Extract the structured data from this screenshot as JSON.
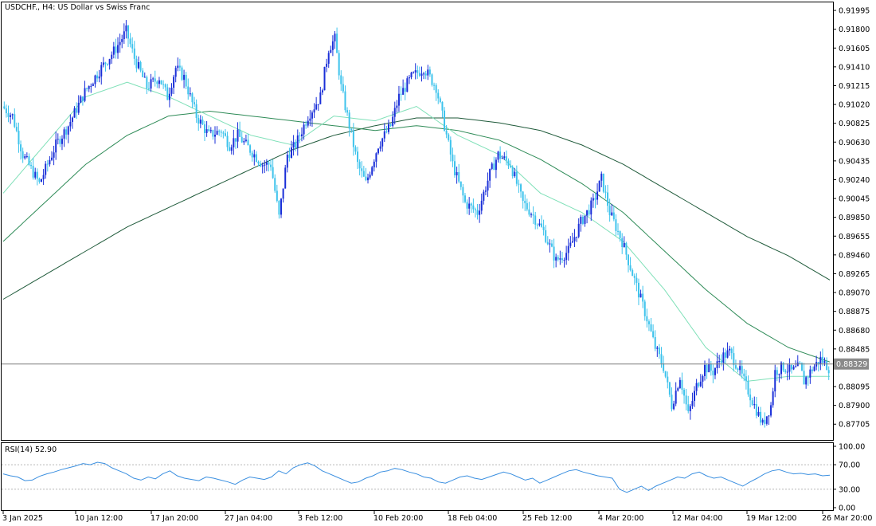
{
  "header": {
    "title": "USDCHF., H4:  US Dollar vs Swiss Franc"
  },
  "rsi_label": "RSI(14) 52.90",
  "colors": {
    "bull": "#1a2fd8",
    "bear": "#3ec3ec",
    "ma_fast": "#7fe0b8",
    "ma_mid": "#2e8b57",
    "ma_slow": "#1f5a3a",
    "rsi": "#3a8fe0",
    "grid_frame": "#000000",
    "price_line": "#7d7d7d"
  },
  "chart_data": [
    {
      "type": "candlestick",
      "title": "USDCHF., H4:  US Dollar vs Swiss Franc",
      "ylim": [
        0.8755,
        0.9207
      ],
      "y_ticks": [
        "0.91995",
        "0.91800",
        "0.91605",
        "0.91410",
        "0.91215",
        "0.91020",
        "0.90825",
        "0.90630",
        "0.90435",
        "0.90240",
        "0.90045",
        "0.89850",
        "0.89655",
        "0.89460",
        "0.89265",
        "0.89070",
        "0.88875",
        "0.88680",
        "0.88485",
        "0.88095",
        "0.87900",
        "0.87705"
      ],
      "x_ticks": [
        "3 Jan 2025",
        "10 Jan 12:00",
        "17 Jan 20:00",
        "27 Jan 04:00",
        "3 Feb 12:00",
        "10 Feb 20:00",
        "18 Feb 04:00",
        "25 Feb 12:00",
        "4 Mar 20:00",
        "12 Mar 04:00",
        "19 Mar 12:00",
        "26 Mar 20:00"
      ],
      "current_price": "0.88329",
      "close_path": [
        [
          0,
          0.91
        ],
        [
          5,
          0.909
        ],
        [
          10,
          0.905
        ],
        [
          18,
          0.902
        ],
        [
          26,
          0.906
        ],
        [
          32,
          0.908
        ],
        [
          40,
          0.9115
        ],
        [
          48,
          0.914
        ],
        [
          55,
          0.916
        ],
        [
          60,
          0.9178
        ],
        [
          64,
          0.915
        ],
        [
          70,
          0.912
        ],
        [
          76,
          0.913
        ],
        [
          80,
          0.911
        ],
        [
          84,
          0.914
        ],
        [
          88,
          0.913
        ],
        [
          94,
          0.909
        ],
        [
          100,
          0.907
        ],
        [
          106,
          0.9075
        ],
        [
          110,
          0.906
        ],
        [
          114,
          0.907
        ],
        [
          118,
          0.906
        ],
        [
          122,
          0.905
        ],
        [
          126,
          0.904
        ],
        [
          130,
          0.904
        ],
        [
          134,
          0.8985
        ],
        [
          138,
          0.905
        ],
        [
          142,
          0.906
        ],
        [
          148,
          0.909
        ],
        [
          154,
          0.911
        ],
        [
          158,
          0.916
        ],
        [
          161,
          0.917
        ],
        [
          164,
          0.912
        ],
        [
          168,
          0.908
        ],
        [
          172,
          0.904
        ],
        [
          176,
          0.902
        ],
        [
          182,
          0.906
        ],
        [
          188,
          0.908
        ],
        [
          192,
          0.911
        ],
        [
          198,
          0.913
        ],
        [
          204,
          0.914
        ],
        [
          210,
          0.912
        ],
        [
          214,
          0.908
        ],
        [
          218,
          0.904
        ],
        [
          224,
          0.9
        ],
        [
          230,
          0.899
        ],
        [
          236,
          0.903
        ],
        [
          240,
          0.905
        ],
        [
          246,
          0.904
        ],
        [
          252,
          0.9
        ],
        [
          256,
          0.899
        ],
        [
          262,
          0.897
        ],
        [
          268,
          0.894
        ],
        [
          274,
          0.895
        ],
        [
          280,
          0.898
        ],
        [
          286,
          0.9
        ],
        [
          290,
          0.9025
        ],
        [
          294,
          0.899
        ],
        [
          300,
          0.896
        ],
        [
          306,
          0.892
        ],
        [
          312,
          0.888
        ],
        [
          316,
          0.885
        ],
        [
          320,
          0.883
        ],
        [
          324,
          0.879
        ],
        [
          328,
          0.882
        ],
        [
          332,
          0.878
        ],
        [
          336,
          0.881
        ],
        [
          340,
          0.883
        ],
        [
          344,
          0.8825
        ],
        [
          348,
          0.884
        ],
        [
          352,
          0.8845
        ],
        [
          356,
          0.883
        ],
        [
          360,
          0.881
        ],
        [
          364,
          0.879
        ],
        [
          368,
          0.877
        ],
        [
          372,
          0.879
        ],
        [
          374,
          0.8825
        ],
        [
          378,
          0.883
        ],
        [
          382,
          0.8825
        ],
        [
          386,
          0.883
        ],
        [
          388,
          0.8815
        ],
        [
          392,
          0.8828
        ],
        [
          396,
          0.8838
        ],
        [
          400,
          0.8829
        ]
      ],
      "ma_fast": [
        [
          0,
          0.901
        ],
        [
          20,
          0.906
        ],
        [
          40,
          0.911
        ],
        [
          60,
          0.9125
        ],
        [
          80,
          0.911
        ],
        [
          100,
          0.909
        ],
        [
          120,
          0.907
        ],
        [
          140,
          0.906
        ],
        [
          160,
          0.909
        ],
        [
          180,
          0.9085
        ],
        [
          200,
          0.91
        ],
        [
          220,
          0.907
        ],
        [
          240,
          0.905
        ],
        [
          260,
          0.901
        ],
        [
          280,
          0.899
        ],
        [
          300,
          0.896
        ],
        [
          320,
          0.891
        ],
        [
          340,
          0.885
        ],
        [
          360,
          0.8815
        ],
        [
          380,
          0.882
        ],
        [
          400,
          0.882
        ]
      ],
      "ma_mid": [
        [
          0,
          0.896
        ],
        [
          20,
          0.9
        ],
        [
          40,
          0.904
        ],
        [
          60,
          0.907
        ],
        [
          80,
          0.909
        ],
        [
          100,
          0.9095
        ],
        [
          120,
          0.909
        ],
        [
          140,
          0.9085
        ],
        [
          160,
          0.908
        ],
        [
          180,
          0.9075
        ],
        [
          200,
          0.908
        ],
        [
          220,
          0.9075
        ],
        [
          240,
          0.9065
        ],
        [
          260,
          0.9045
        ],
        [
          280,
          0.902
        ],
        [
          300,
          0.899
        ],
        [
          320,
          0.895
        ],
        [
          340,
          0.891
        ],
        [
          360,
          0.8875
        ],
        [
          380,
          0.885
        ],
        [
          400,
          0.8835
        ]
      ],
      "ma_slow": [
        [
          0,
          0.89
        ],
        [
          20,
          0.8925
        ],
        [
          40,
          0.895
        ],
        [
          60,
          0.8975
        ],
        [
          80,
          0.8995
        ],
        [
          100,
          0.9015
        ],
        [
          120,
          0.9035
        ],
        [
          140,
          0.9055
        ],
        [
          160,
          0.907
        ],
        [
          180,
          0.908
        ],
        [
          200,
          0.9088
        ],
        [
          220,
          0.9088
        ],
        [
          240,
          0.9083
        ],
        [
          260,
          0.9075
        ],
        [
          280,
          0.906
        ],
        [
          300,
          0.904
        ],
        [
          320,
          0.9015
        ],
        [
          340,
          0.899
        ],
        [
          360,
          0.8965
        ],
        [
          380,
          0.8945
        ],
        [
          400,
          0.892
        ]
      ]
    },
    {
      "type": "line",
      "title": "RSI(14) 52.90",
      "ylim": [
        0,
        100
      ],
      "levels": [
        70,
        30
      ],
      "y_ticks": [
        "100.00",
        "70.00",
        "30.00",
        "0.00"
      ],
      "values": [
        55,
        52,
        50,
        44,
        45,
        51,
        55,
        58,
        62,
        65,
        68,
        72,
        70,
        74,
        72,
        65,
        60,
        55,
        48,
        45,
        50,
        47,
        55,
        60,
        52,
        48,
        46,
        44,
        50,
        48,
        45,
        42,
        38,
        45,
        50,
        48,
        46,
        50,
        60,
        55,
        65,
        70,
        73,
        68,
        60,
        55,
        50,
        45,
        40,
        42,
        48,
        52,
        58,
        60,
        64,
        62,
        58,
        55,
        50,
        48,
        42,
        40,
        45,
        50,
        52,
        48,
        46,
        50,
        54,
        58,
        55,
        50,
        45,
        48,
        40,
        45,
        50,
        55,
        60,
        62,
        58,
        55,
        52,
        50,
        48,
        30,
        25,
        30,
        35,
        28,
        35,
        40,
        45,
        50,
        48,
        55,
        58,
        52,
        48,
        50,
        45,
        40,
        35,
        42,
        48,
        55,
        60,
        62,
        58,
        55,
        56,
        54,
        55,
        52,
        53
      ]
    }
  ]
}
